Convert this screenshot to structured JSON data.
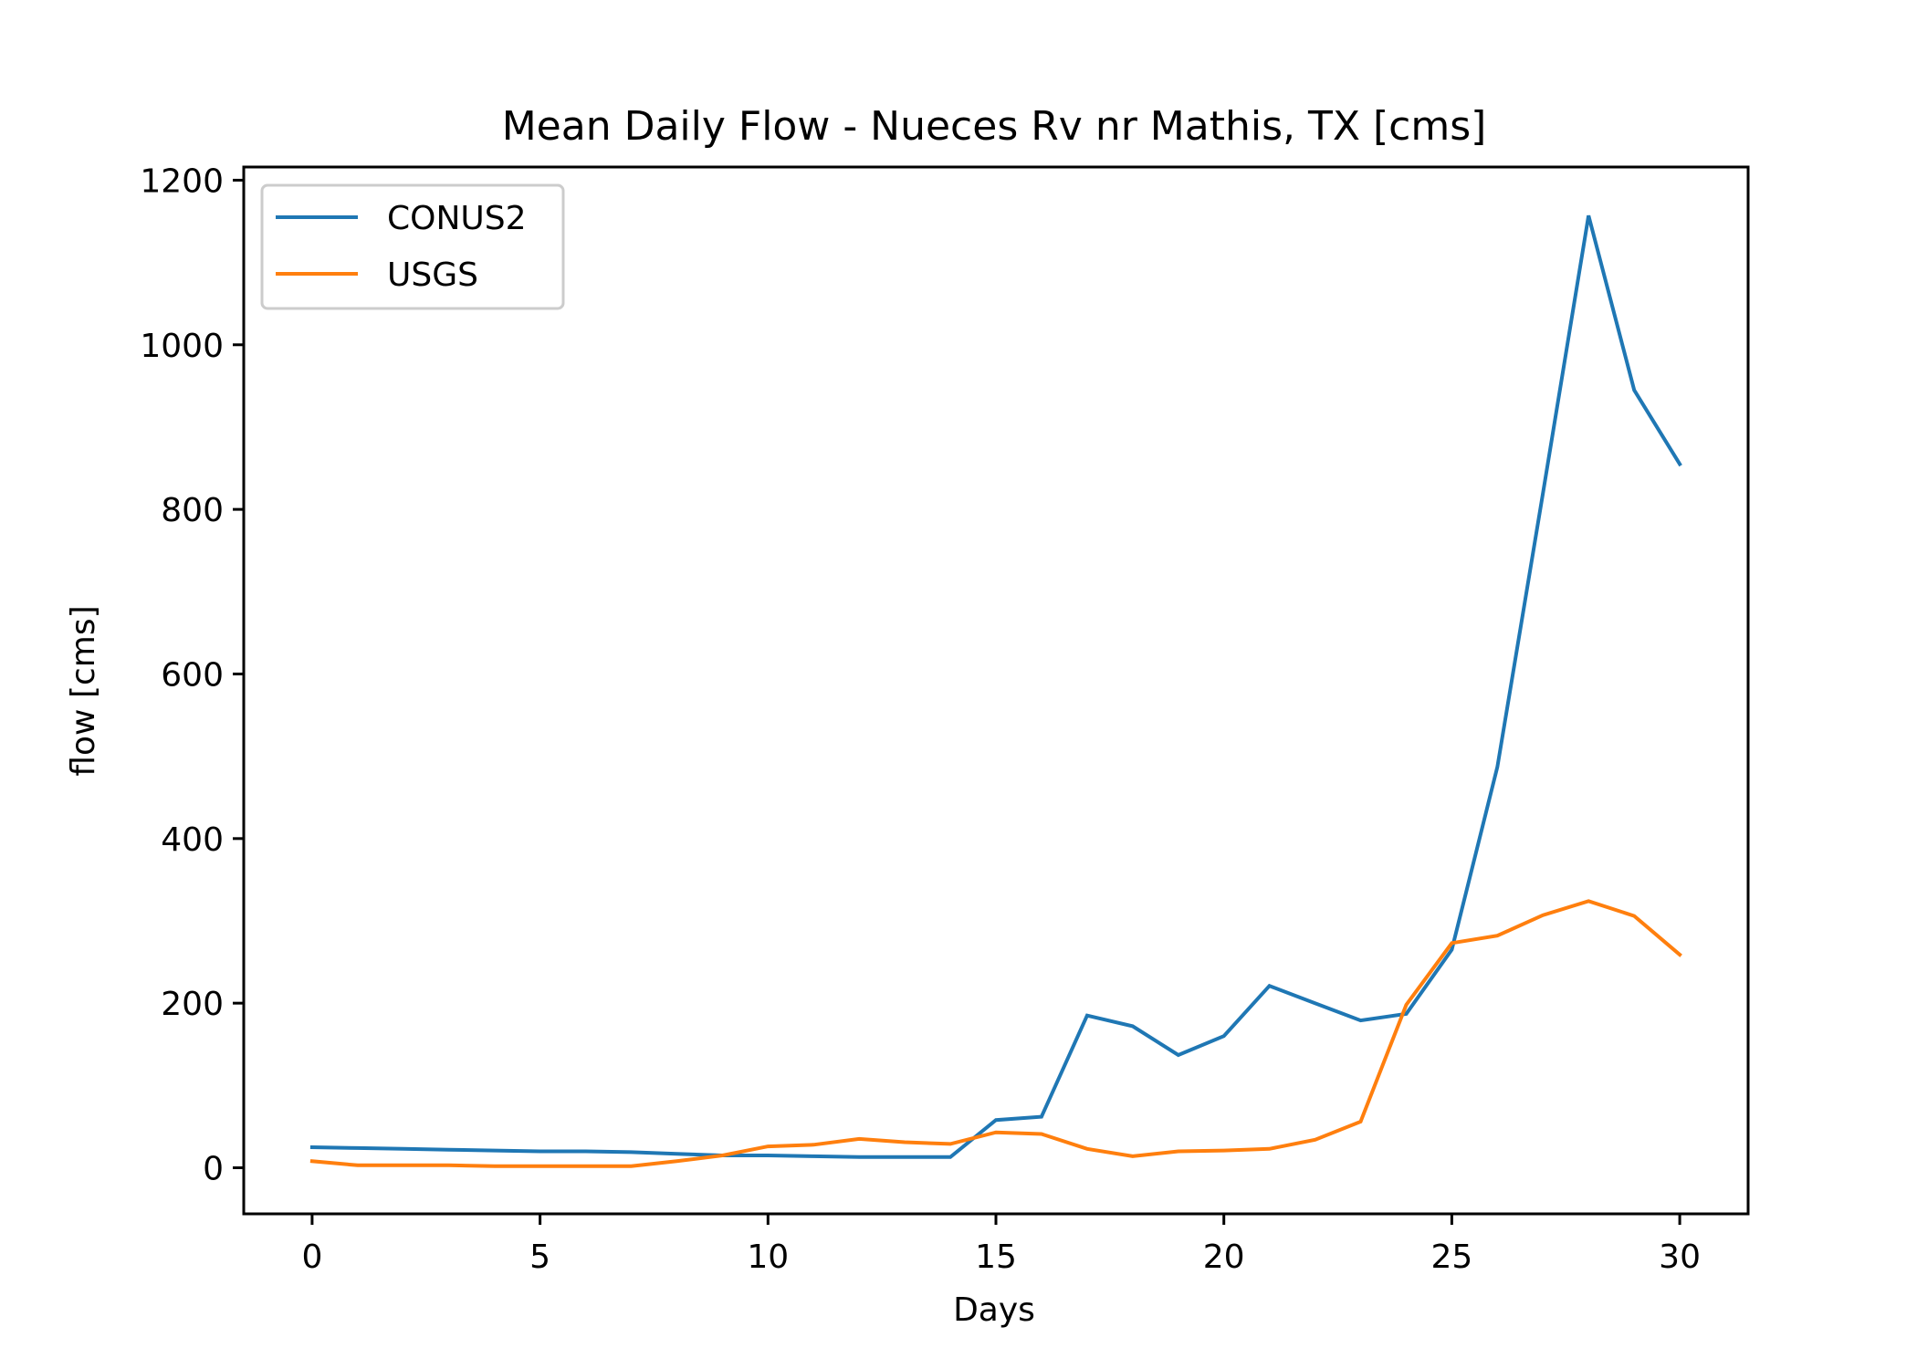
{
  "chart_data": {
    "type": "line",
    "title": "Mean Daily Flow - Nueces Rv nr Mathis, TX [cms]",
    "xlabel": "Days",
    "ylabel": "flow [cms]",
    "xlim": [
      -1.5,
      31.5
    ],
    "ylim": [
      -56,
      1216
    ],
    "xticks": [
      0,
      5,
      10,
      15,
      20,
      25,
      30
    ],
    "yticks": [
      0,
      200,
      400,
      600,
      800,
      1000,
      1200
    ],
    "xtick_labels": [
      "0",
      "5",
      "10",
      "15",
      "20",
      "25",
      "30"
    ],
    "ytick_labels": [
      "0",
      "200",
      "400",
      "600",
      "800",
      "1000",
      "1200"
    ],
    "grid": false,
    "legend_position": "top-left",
    "x": [
      0,
      1,
      2,
      3,
      4,
      5,
      6,
      7,
      8,
      9,
      10,
      11,
      12,
      13,
      14,
      15,
      16,
      17,
      18,
      19,
      20,
      21,
      22,
      23,
      24,
      25,
      26,
      27,
      28,
      29,
      30
    ],
    "series": [
      {
        "name": "CONUS2",
        "color": "#1f77b4",
        "values": [
          25,
          24,
          23,
          22,
          21,
          20,
          20,
          19,
          17,
          15,
          15,
          14,
          13,
          13,
          13,
          58,
          62,
          185,
          172,
          137,
          160,
          221,
          200,
          179,
          187,
          265,
          487,
          820,
          1157,
          945,
          855
        ]
      },
      {
        "name": "USGS",
        "color": "#ff7f0e",
        "values": [
          8,
          3,
          3,
          3,
          2,
          2,
          2,
          2,
          8,
          15,
          26,
          28,
          35,
          31,
          29,
          43,
          41,
          23,
          14,
          20,
          21,
          23,
          34,
          56,
          198,
          273,
          282,
          307,
          324,
          306,
          259
        ]
      }
    ]
  }
}
